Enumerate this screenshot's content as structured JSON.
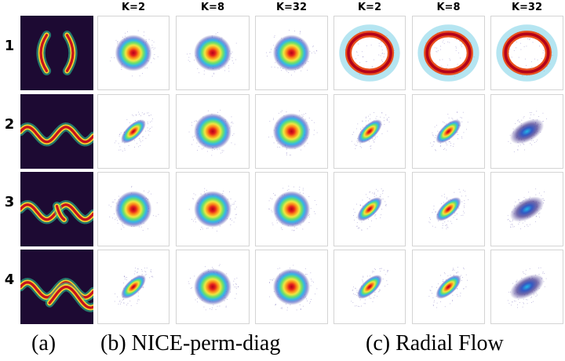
{
  "column_headers": [
    "K=2",
    "K=8",
    "K=32",
    "K=2",
    "K=8",
    "K=32"
  ],
  "row_labels": [
    "1",
    "2",
    "3",
    "4"
  ],
  "captions": {
    "a": "(a)",
    "b": "(b) NICE-perm-diag",
    "c": "(c) Radial Flow"
  },
  "colors": {
    "target_background": "#1d0a33",
    "heat_core": "#b3001a",
    "heat_outer": "#3c2a8a"
  },
  "rows": [
    {
      "target": "two-moons",
      "samples": [
        "round",
        "round",
        "round",
        "ring",
        "ring",
        "ring"
      ]
    },
    {
      "target": "sine-wave",
      "samples": [
        "tilted",
        "round",
        "round",
        "tilted",
        "tilted",
        "tilted-dark"
      ]
    },
    {
      "target": "sine-wave-pinched",
      "samples": [
        "round",
        "round",
        "round",
        "tilted",
        "tilted",
        "tilted-dark"
      ]
    },
    {
      "target": "sine-wave-split",
      "samples": [
        "tilted",
        "round",
        "round",
        "tilted",
        "tilted",
        "tilted-dark"
      ]
    }
  ]
}
